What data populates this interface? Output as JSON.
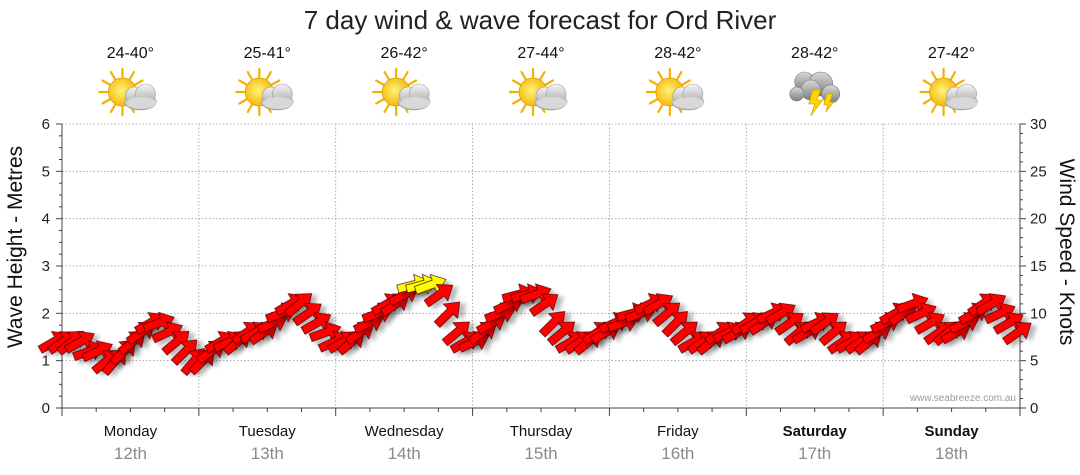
{
  "chart_data": {
    "type": "line",
    "title": "7 day wind & wave forecast for Ord River",
    "left_axis": {
      "label": "Wave Height - Metres",
      "ylim": [
        0,
        6
      ],
      "ticks": [
        "0",
        "1",
        "2",
        "3",
        "4",
        "5",
        "6"
      ]
    },
    "right_axis": {
      "label": "Wind Speed - Knots",
      "ylim": [
        0,
        30
      ],
      "ticks": [
        "0",
        "5",
        "10",
        "15",
        "20",
        "25",
        "30"
      ]
    },
    "grid": true,
    "days": [
      {
        "day": "Monday",
        "date": "12th",
        "bold": false,
        "temp": "24-40°",
        "icon": "sun-cloud-icon"
      },
      {
        "day": "Tuesday",
        "date": "13th",
        "bold": false,
        "temp": "25-41°",
        "icon": "sun-cloud-icon"
      },
      {
        "day": "Wednesday",
        "date": "14th",
        "bold": false,
        "temp": "26-42°",
        "icon": "sun-cloud-icon"
      },
      {
        "day": "Thursday",
        "date": "15th",
        "bold": false,
        "temp": "27-44°",
        "icon": "sun-cloud-icon"
      },
      {
        "day": "Friday",
        "date": "16th",
        "bold": false,
        "temp": "28-42°",
        "icon": "sun-cloud-icon"
      },
      {
        "day": "Saturday",
        "date": "17th",
        "bold": true,
        "temp": "28-42°",
        "icon": "storm-cloud-icon"
      },
      {
        "day": "Sunday",
        "date": "18th",
        "bold": true,
        "temp": "27-42°",
        "icon": "sun-cloud-icon"
      }
    ],
    "wind_speed_knots": [
      7,
      7,
      7,
      7,
      6,
      6,
      5,
      5,
      6,
      7,
      8,
      9,
      9,
      8,
      7,
      6,
      5,
      5,
      6,
      7,
      7,
      7,
      8,
      8,
      8,
      9,
      10,
      11,
      11,
      10,
      9,
      8,
      7,
      7,
      7,
      8,
      9,
      10,
      11,
      11,
      12,
      13,
      13,
      13,
      12,
      10,
      8,
      7,
      7,
      8,
      9,
      10,
      11,
      12,
      12,
      12,
      11,
      9,
      8,
      7,
      7,
      7,
      8,
      8,
      9,
      9,
      10,
      10,
      11,
      11,
      10,
      9,
      8,
      7,
      7,
      7,
      8,
      8,
      8,
      9,
      9,
      9,
      10,
      10,
      9,
      8,
      8,
      9,
      9,
      8,
      7,
      7,
      7,
      7,
      8,
      9,
      10,
      10,
      11,
      10,
      9,
      8,
      8,
      8,
      9,
      10,
      11,
      11,
      10,
      9,
      8
    ],
    "wind_direction_deg": [
      240,
      235,
      230,
      240,
      250,
      245,
      230,
      220,
      225,
      230,
      235,
      240,
      250,
      245,
      230,
      225,
      220,
      225,
      235,
      240,
      245,
      230,
      235,
      240,
      235,
      245,
      250,
      240,
      230,
      235,
      240,
      250,
      245,
      240,
      230,
      235,
      245,
      250,
      240,
      235,
      240,
      255,
      255,
      250,
      235,
      225,
      230,
      240,
      245,
      235,
      240,
      250,
      245,
      255,
      255,
      250,
      235,
      225,
      230,
      240,
      235,
      230,
      235,
      240,
      245,
      250,
      255,
      250,
      245,
      240,
      230,
      225,
      230,
      240,
      235,
      230,
      235,
      245,
      240,
      235,
      240,
      235,
      245,
      240,
      235,
      230,
      240,
      245,
      235,
      230,
      235,
      240,
      235,
      230,
      240,
      245,
      240,
      235,
      250,
      245,
      240,
      235,
      230,
      240,
      245,
      240,
      235,
      240,
      245,
      240,
      235
    ],
    "wave_height_m": [],
    "series": [
      {
        "values_key": "wind_speed_knots",
        "color": "#ff0000",
        "highlight_color": "#ffff00",
        "highlight_min_knots": 12.5
      }
    ],
    "credit": "www.seabreeze.com.au"
  }
}
